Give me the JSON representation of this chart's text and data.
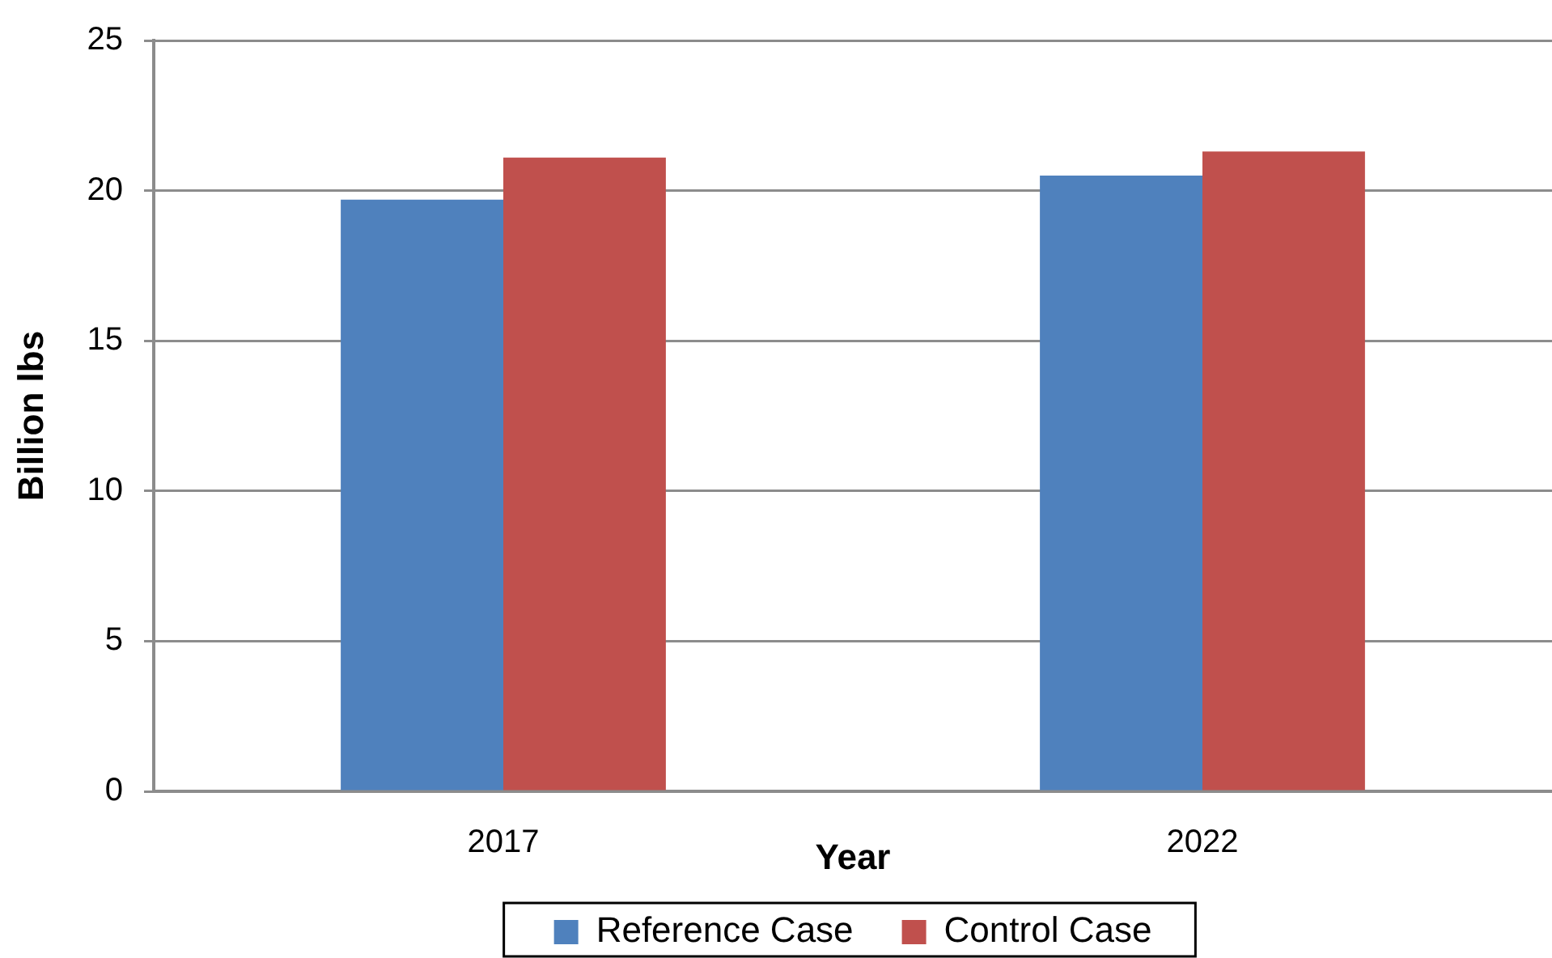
{
  "chart_data": {
    "type": "bar",
    "xlabel": "Year",
    "ylabel": "Billion lbs",
    "categories": [
      "2017",
      "2022"
    ],
    "series": [
      {
        "name": "Reference Case",
        "color": "#4f81bd",
        "values": [
          19.7,
          20.5
        ]
      },
      {
        "name": "Control Case",
        "color": "#c0504d",
        "values": [
          21.1,
          21.3
        ]
      }
    ],
    "ylim": [
      0,
      25
    ],
    "yticks": [
      0,
      5,
      10,
      15,
      20,
      25
    ],
    "grid": "y",
    "legend": "bottom"
  }
}
